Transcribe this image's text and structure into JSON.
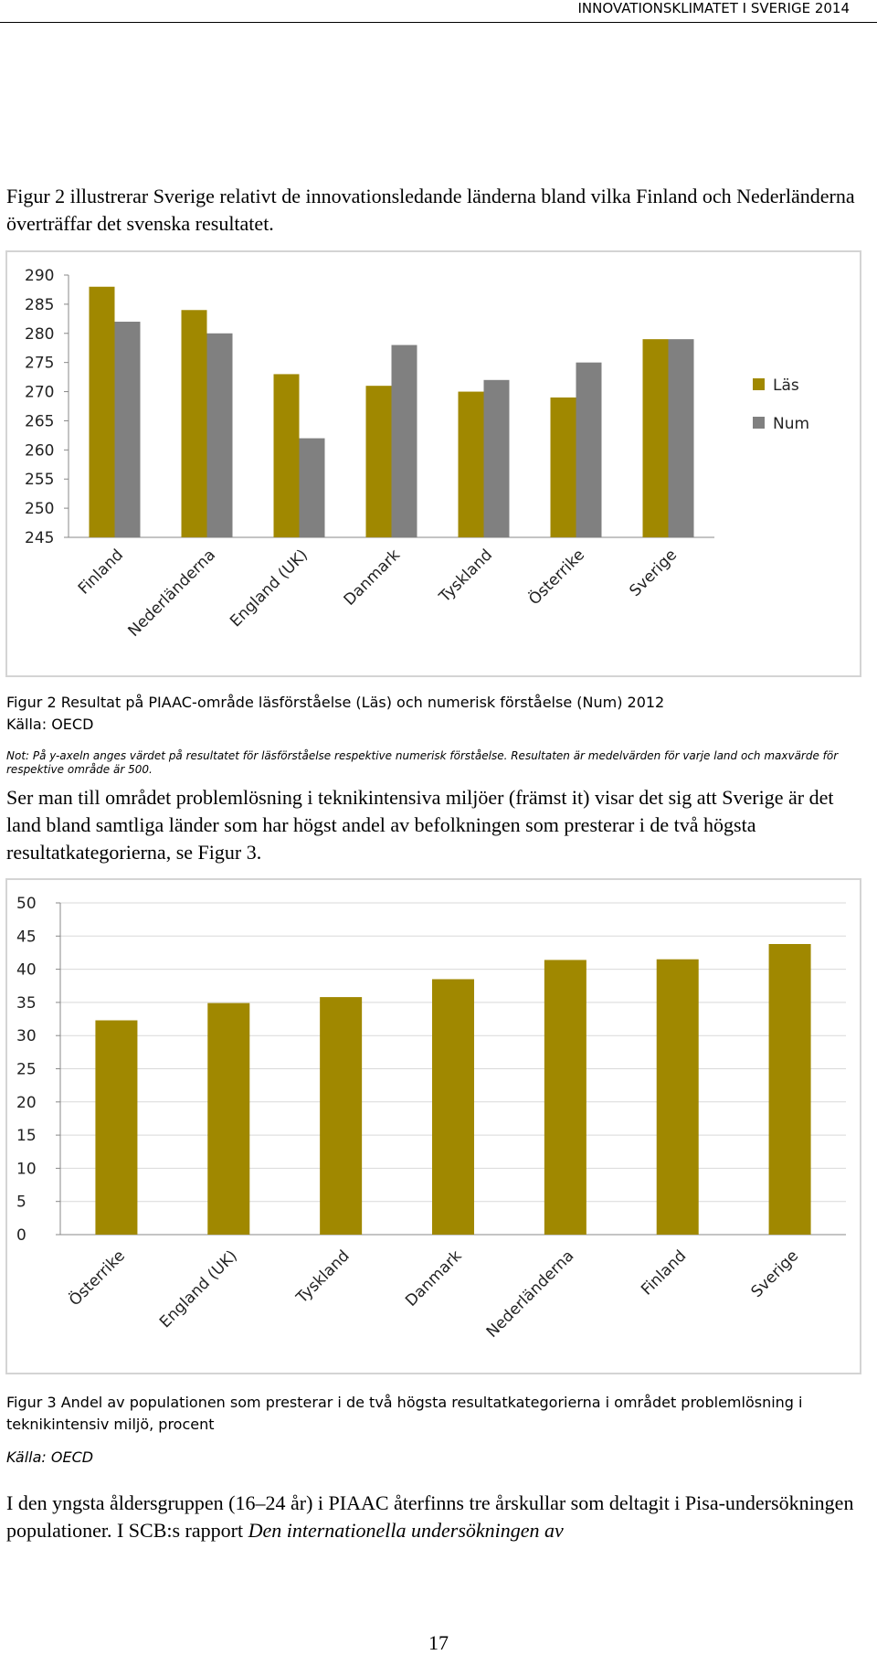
{
  "header": {
    "title": "INNOVATIONSKLIMATET I SVERIGE 2014"
  },
  "paragraphs": [
    "Figur 2 illustrerar Sverige relativt de innovationsledande länderna bland vilka Finland och Nederländerna överträffar det svenska resultatet.",
    "Ser man till området problemlösning i teknikintensiva miljöer (främst it) visar det sig att Sverige är det land bland samtliga länder som har högst andel av befolkningen som presterar i de två högsta resultatkategorierna, se Figur 3."
  ],
  "figure2": {
    "caption": "Figur 2 Resultat på PIAAC-område läsförståelse (Läs) och numerisk förståelse (Num) 2012",
    "source": "Källa: OECD",
    "note": "Not: På y-axeln anges värdet på resultatet för läsförståelse respektive numerisk förståelse. Resultaten är medelvärden för varje land och maxvärde för respektive område är 500."
  },
  "figure3": {
    "caption": "Figur 3 Andel av populationen som presterar i de två högsta resultatkategorierna i området problemlösning i teknikintensiv miljö, procent",
    "source": "Källa: OECD"
  },
  "closing": {
    "text": "I den yngsta åldersgruppen (16–24 år) i PIAAC återfinns tre årskullar som deltagit i Pisa-undersökningen populationer. I SCB:s rapport ",
    "italic": "Den internationella undersökningen av"
  },
  "page_number": "17",
  "chart_data": [
    {
      "type": "bar",
      "categories": [
        "Finland",
        "Nederländerna",
        "England (UK)",
        "Danmark",
        "Tyskland",
        "Österrike",
        "Sverige"
      ],
      "series": [
        {
          "name": "Läs",
          "color": "#a08800",
          "values": [
            288,
            284,
            273,
            271,
            270,
            269,
            279
          ]
        },
        {
          "name": "Num",
          "color": "#808080",
          "values": [
            282,
            280,
            262,
            278,
            272,
            275,
            279
          ]
        }
      ],
      "ylim": [
        245,
        290
      ],
      "yticks": [
        245,
        250,
        255,
        260,
        265,
        270,
        275,
        280,
        285,
        290
      ],
      "grid": false,
      "legend": "right"
    },
    {
      "type": "bar",
      "categories": [
        "Österrike",
        "England (UK)",
        "Tyskland",
        "Danmark",
        "Nederländerna",
        "Finland",
        "Sverige"
      ],
      "values": [
        32.3,
        34.9,
        35.8,
        38.5,
        41.4,
        41.5,
        43.8
      ],
      "color": "#a08800",
      "ylim": [
        0,
        50
      ],
      "yticks": [
        0,
        5,
        10,
        15,
        20,
        25,
        30,
        35,
        40,
        45,
        50
      ],
      "grid": true
    }
  ]
}
